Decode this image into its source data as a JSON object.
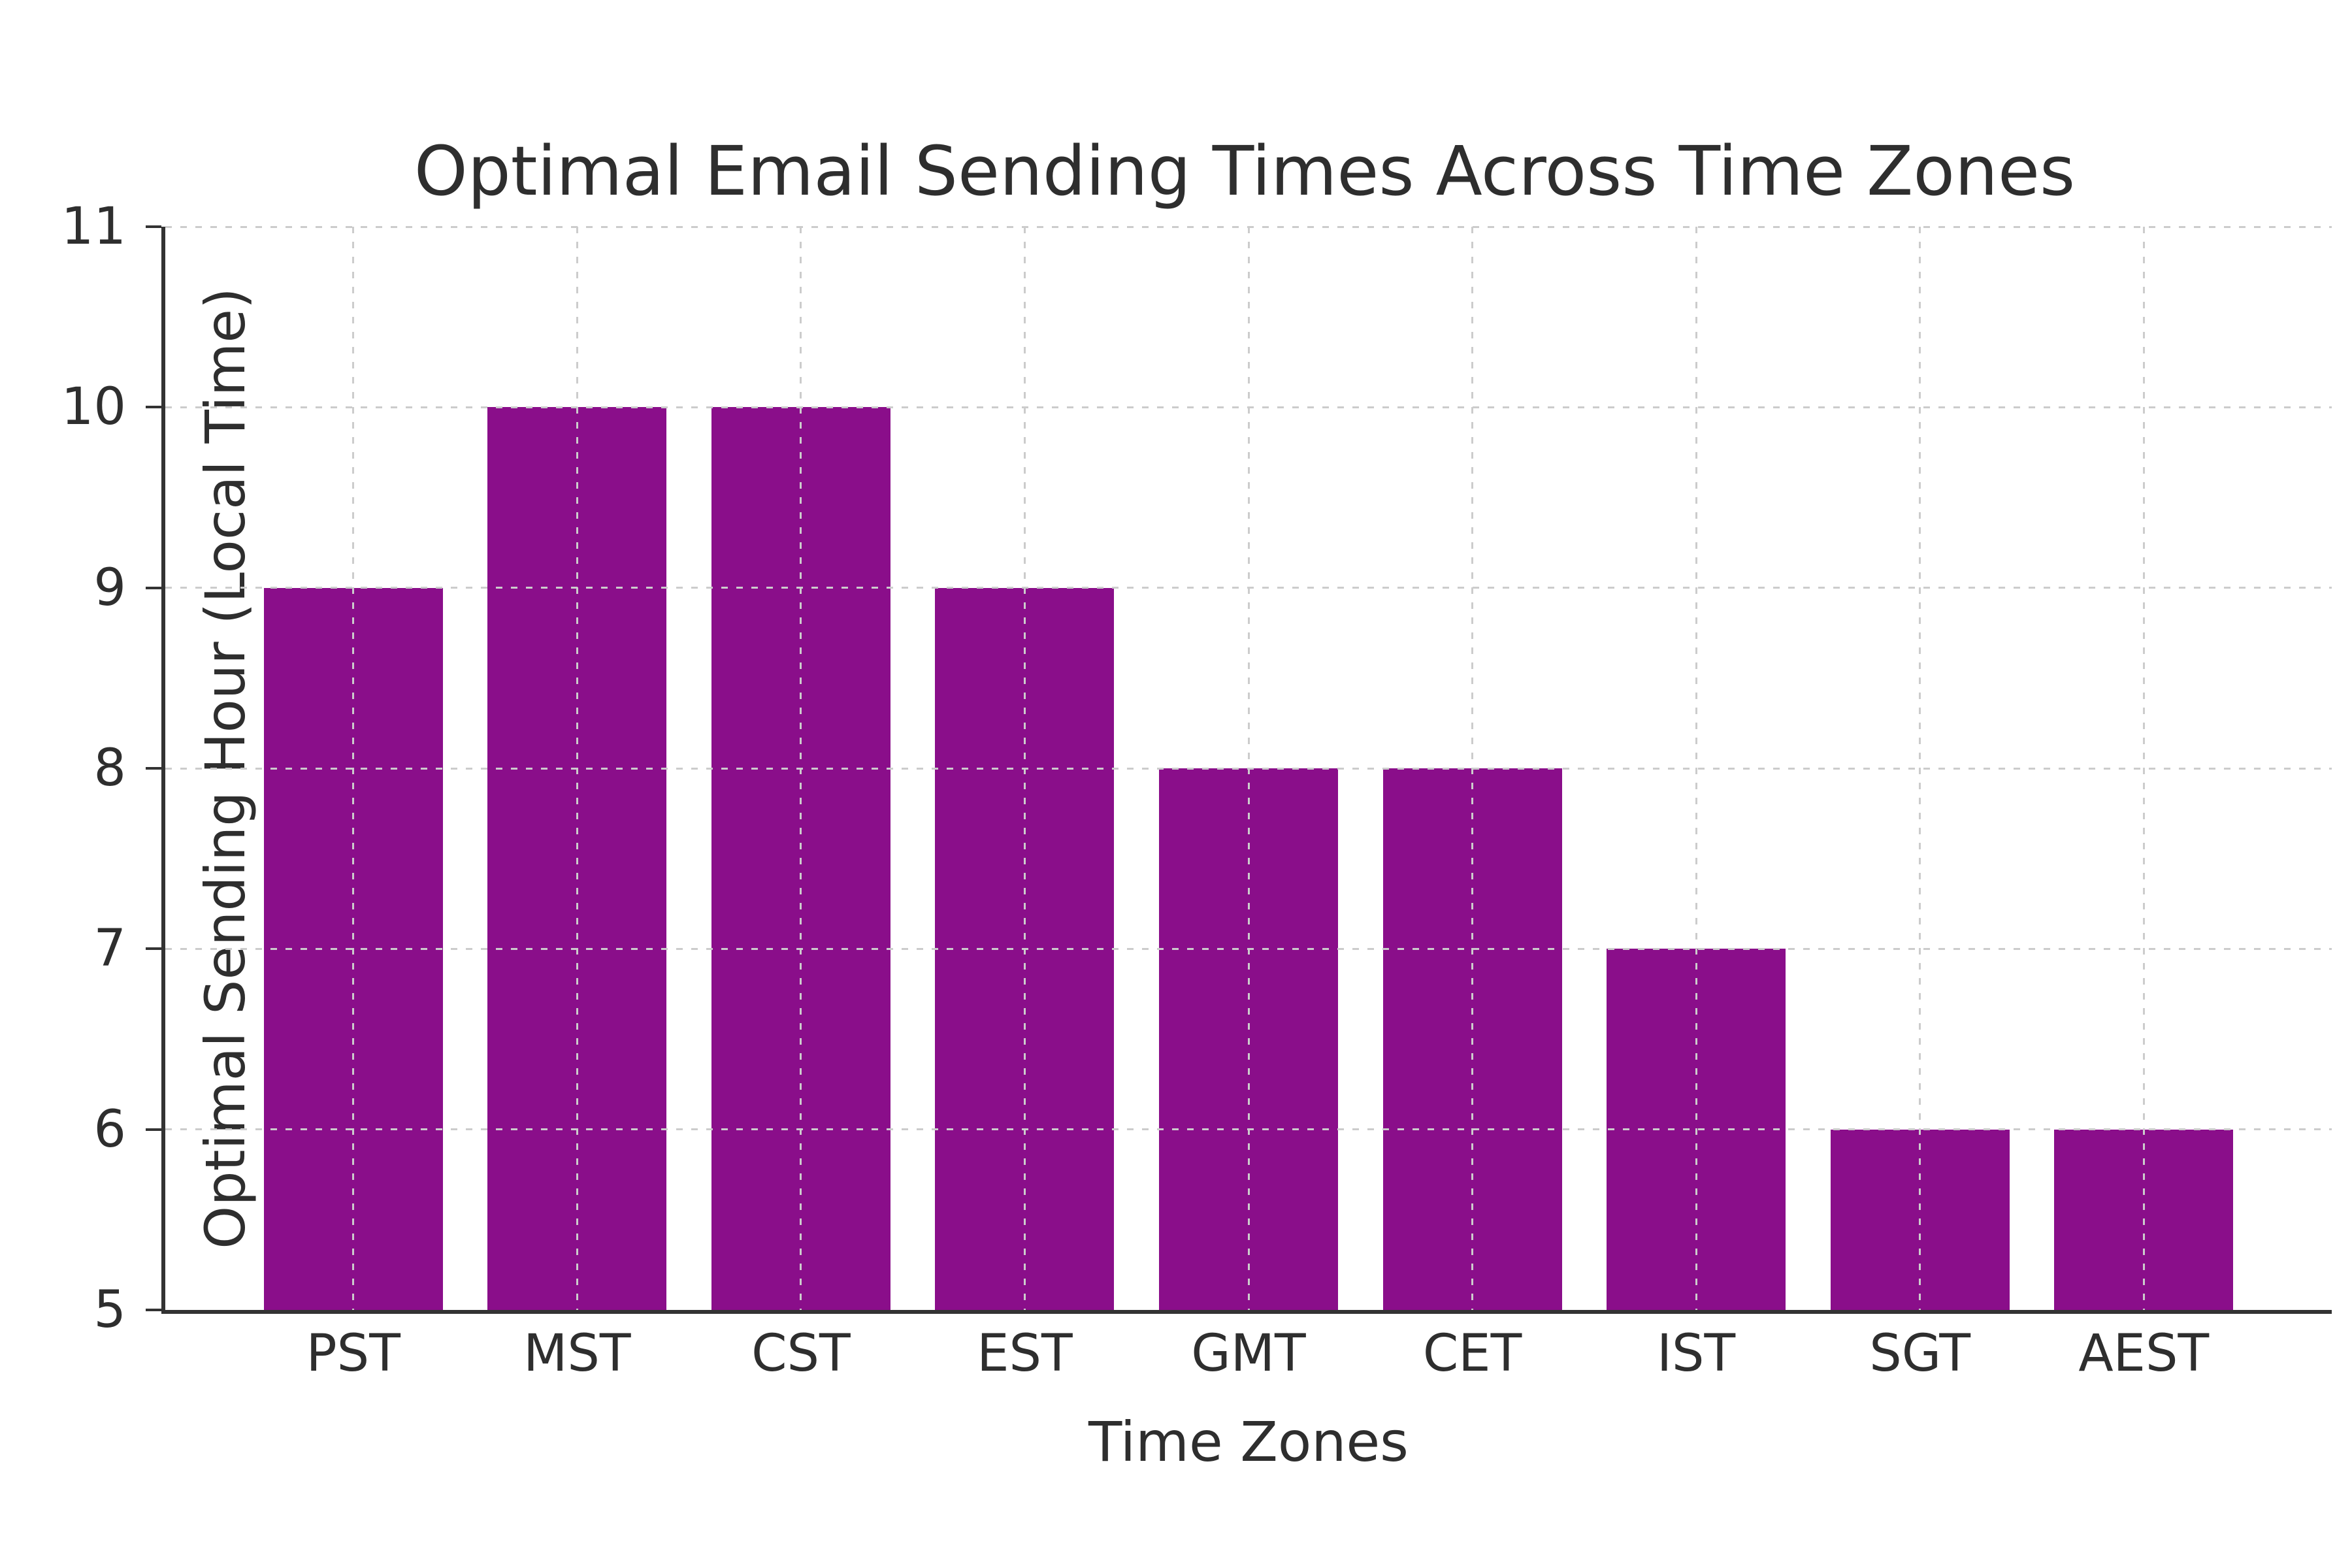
{
  "chart_data": {
    "type": "bar",
    "title": "Optimal Email Sending Times Across Time Zones",
    "xlabel": "Time Zones",
    "ylabel": "Optimal Sending Hour (Local Time)",
    "categories": [
      "PST",
      "MST",
      "CST",
      "EST",
      "GMT",
      "CET",
      "IST",
      "SGT",
      "AEST"
    ],
    "values": [
      9,
      10,
      10,
      9,
      8,
      8,
      7,
      6,
      6
    ],
    "ylim": [
      5,
      11
    ],
    "yticks": [
      5,
      6,
      7,
      8,
      9,
      10,
      11
    ],
    "grid": "dashed, both axes, drawn above bars",
    "legend": "none",
    "bar_width_fraction": 0.8,
    "colors": {
      "bar": "#8A0E8A",
      "spine": "#333333",
      "grid": "#CCCCCC",
      "text": "#2E2E2E",
      "background": "#FFFFFF"
    }
  }
}
